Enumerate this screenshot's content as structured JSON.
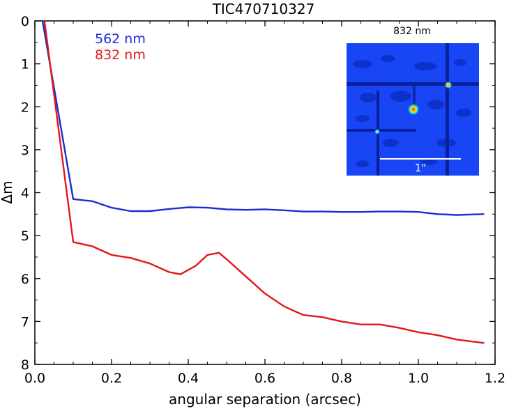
{
  "chart_data": {
    "type": "line",
    "title": "TIC470710327",
    "xlabel": "angular separation (arcsec)",
    "ylabel": "Δm",
    "xlim": [
      0.0,
      1.2
    ],
    "ylim": [
      8,
      0
    ],
    "y_inverted": true,
    "xticks": [
      0.0,
      0.2,
      0.4,
      0.6,
      0.8,
      1.0,
      1.2
    ],
    "xtick_labels": [
      "0.0",
      "0.2",
      "0.4",
      "0.6",
      "0.8",
      "1.0",
      "1.2"
    ],
    "yticks": [
      0,
      1,
      2,
      3,
      4,
      5,
      6,
      7,
      8
    ],
    "ytick_labels": [
      "0",
      "1",
      "2",
      "3",
      "4",
      "5",
      "6",
      "7",
      "8"
    ],
    "grid": false,
    "legend_position": "top-left",
    "series": [
      {
        "name": "562 nm",
        "color": "#1a2ed4",
        "x": [
          0.02,
          0.1,
          0.15,
          0.2,
          0.25,
          0.3,
          0.35,
          0.4,
          0.45,
          0.5,
          0.55,
          0.6,
          0.65,
          0.7,
          0.75,
          0.8,
          0.85,
          0.9,
          0.95,
          1.0,
          1.05,
          1.1,
          1.17
        ],
        "y": [
          0.0,
          4.15,
          4.2,
          4.35,
          4.43,
          4.43,
          4.38,
          4.34,
          4.35,
          4.39,
          4.4,
          4.39,
          4.41,
          4.44,
          4.44,
          4.45,
          4.45,
          4.44,
          4.44,
          4.45,
          4.5,
          4.52,
          4.5
        ]
      },
      {
        "name": "832 nm",
        "color": "#e3171b",
        "x": [
          0.025,
          0.1,
          0.15,
          0.2,
          0.25,
          0.3,
          0.35,
          0.38,
          0.42,
          0.45,
          0.48,
          0.5,
          0.55,
          0.6,
          0.65,
          0.7,
          0.75,
          0.8,
          0.85,
          0.9,
          0.95,
          1.0,
          1.05,
          1.1,
          1.17
        ],
        "y": [
          0.0,
          5.15,
          5.25,
          5.45,
          5.52,
          5.65,
          5.85,
          5.9,
          5.7,
          5.45,
          5.4,
          5.55,
          5.95,
          6.35,
          6.65,
          6.85,
          6.9,
          7.0,
          7.07,
          7.07,
          7.15,
          7.25,
          7.32,
          7.42,
          7.5
        ]
      }
    ],
    "inset": {
      "title": "832 nm",
      "scale_bar_label": "1\""
    }
  }
}
